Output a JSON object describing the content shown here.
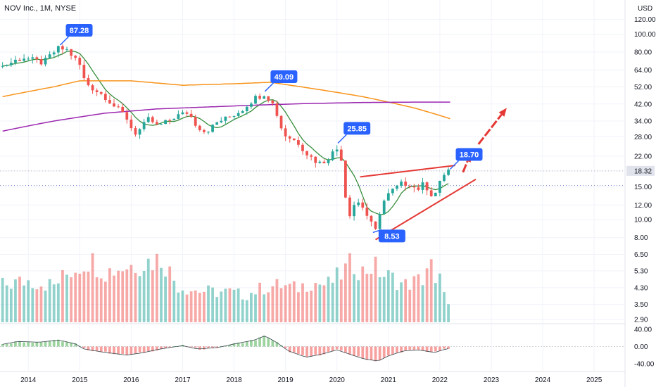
{
  "chart_data": {
    "type": "candlestick",
    "title": "NOV Inc., 1M, NYSE",
    "currency": "USD",
    "price_axis": {
      "scale": "log",
      "ticks": [
        "120.00",
        "100.00",
        "80.00",
        "64.00",
        "52.00",
        "42.00",
        "34.00",
        "28.00",
        "22.00",
        "18.32",
        "15.00",
        "12.00",
        "10.00",
        "8.00",
        "6.50",
        "5.30",
        "4.30",
        "3.50",
        "2.90"
      ],
      "current_price": "18.32",
      "range": [
        2.8,
        150
      ]
    },
    "oscillator_axis": {
      "ticks": [
        "40.00",
        "0.00",
        "-40.00"
      ],
      "range": [
        -55,
        50
      ]
    },
    "x_axis": {
      "ticks": [
        {
          "label": "2014",
          "x": 2014.0
        },
        {
          "label": "2015",
          "x": 2015.0
        },
        {
          "label": "2016",
          "x": 2016.0
        },
        {
          "label": "2017",
          "x": 2017.0
        },
        {
          "label": "2018",
          "x": 2018.0
        },
        {
          "label": "2019",
          "x": 2019.0
        },
        {
          "label": "2020",
          "x": 2020.0
        },
        {
          "label": "2021",
          "x": 2021.0
        },
        {
          "label": "2022",
          "x": 2022.0
        },
        {
          "label": "2023",
          "x": 2023.0
        },
        {
          "label": "2024",
          "x": 2024.0
        },
        {
          "label": "2025",
          "x": 2025.0
        }
      ],
      "range": [
        2013.45,
        2025.6
      ]
    },
    "price_anchors": [
      [
        2013.5,
        67
      ],
      [
        2013.7,
        71
      ],
      [
        2013.9,
        75
      ],
      [
        2014.1,
        72
      ],
      [
        2014.3,
        70
      ],
      [
        2014.5,
        80
      ],
      [
        2014.6,
        84
      ],
      [
        2014.75,
        82
      ],
      [
        2014.9,
        74
      ],
      [
        2015.0,
        68
      ],
      [
        2015.1,
        55
      ],
      [
        2015.3,
        50
      ],
      [
        2015.5,
        46
      ],
      [
        2015.7,
        40
      ],
      [
        2015.9,
        36
      ],
      [
        2016.05,
        29
      ],
      [
        2016.2,
        31
      ],
      [
        2016.35,
        35
      ],
      [
        2016.5,
        32
      ],
      [
        2016.65,
        33
      ],
      [
        2016.85,
        36
      ],
      [
        2017.0,
        37
      ],
      [
        2017.1,
        38
      ],
      [
        2017.25,
        33
      ],
      [
        2017.4,
        30
      ],
      [
        2017.55,
        31
      ],
      [
        2017.7,
        34
      ],
      [
        2017.85,
        35
      ],
      [
        2018.0,
        37
      ],
      [
        2018.15,
        39
      ],
      [
        2018.3,
        43
      ],
      [
        2018.45,
        46
      ],
      [
        2018.6,
        48
      ],
      [
        2018.75,
        42
      ],
      [
        2018.85,
        36
      ],
      [
        2018.95,
        29
      ],
      [
        2019.05,
        28
      ],
      [
        2019.25,
        26
      ],
      [
        2019.4,
        23
      ],
      [
        2019.55,
        21
      ],
      [
        2019.7,
        20
      ],
      [
        2019.85,
        22
      ],
      [
        2020.0,
        24
      ],
      [
        2020.1,
        21
      ],
      [
        2020.2,
        9.6
      ],
      [
        2020.3,
        12
      ],
      [
        2020.45,
        12.5
      ],
      [
        2020.55,
        11
      ],
      [
        2020.65,
        9.6
      ],
      [
        2020.75,
        8.7
      ],
      [
        2020.85,
        11.5
      ],
      [
        2020.95,
        13.2
      ],
      [
        2021.1,
        14.5
      ],
      [
        2021.25,
        15.5
      ],
      [
        2021.4,
        15.8
      ],
      [
        2021.55,
        14.5
      ],
      [
        2021.7,
        15.6
      ],
      [
        2021.85,
        13.5
      ],
      [
        2021.95,
        14.2
      ],
      [
        2022.05,
        17.2
      ],
      [
        2022.15,
        18.5
      ]
    ],
    "moving_averages": [
      {
        "color": "#f7931a",
        "points": [
          [
            2013.5,
            46
          ],
          [
            2014.5,
            52
          ],
          [
            2015.0,
            56
          ],
          [
            2016.0,
            56
          ],
          [
            2017.0,
            53
          ],
          [
            2018.0,
            54
          ],
          [
            2018.7,
            55
          ],
          [
            2019.5,
            51
          ],
          [
            2020.5,
            46
          ],
          [
            2021.5,
            40
          ],
          [
            2022.2,
            35
          ]
        ]
      },
      {
        "color": "#9c27b0",
        "points": [
          [
            2013.5,
            30
          ],
          [
            2014.5,
            34
          ],
          [
            2015.5,
            37.5
          ],
          [
            2016.5,
            39.5
          ],
          [
            2017.5,
            40.5
          ],
          [
            2018.5,
            41.5
          ],
          [
            2019.5,
            42.3
          ],
          [
            2020.5,
            42.8
          ],
          [
            2021.5,
            43
          ],
          [
            2022.2,
            43
          ]
        ]
      }
    ],
    "callouts": [
      {
        "label": "87.28",
        "date": 2014.62,
        "price": 87.28,
        "color": "#2962ff"
      },
      {
        "label": "49.09",
        "date": 2018.6,
        "price": 49.09,
        "color": "#2962ff"
      },
      {
        "label": "25.85",
        "date": 2020.02,
        "price": 25.85,
        "color": "#2962ff"
      },
      {
        "label": "8.53",
        "date": 2020.7,
        "price": 8.53,
        "color": "#2962ff"
      },
      {
        "label": "18.70",
        "date": 2022.2,
        "price": 18.7,
        "color": "#2962ff"
      }
    ],
    "trendlines": [
      {
        "color": "#e53935",
        "from": [
          2020.45,
          17.0
        ],
        "to": [
          2022.3,
          19.6
        ]
      },
      {
        "color": "#e53935",
        "from": [
          2020.75,
          7.8
        ],
        "to": [
          2022.7,
          16.5
        ]
      }
    ],
    "arrows": [
      {
        "color": "#e53935",
        "from": [
          2022.45,
          18.0
        ],
        "to": [
          2022.6,
          22.8
        ]
      },
      {
        "color": "#e53935",
        "from": [
          2022.75,
          25.5
        ],
        "to": [
          2023.3,
          40.0
        ]
      }
    ],
    "horizontal_levels": [
      {
        "price": 18.32,
        "color": "#b2b5be",
        "style": "dotted"
      },
      {
        "price": 15.3,
        "color": "#7986cb",
        "style": "dotted"
      }
    ],
    "volume_profile": [
      [
        2013.5,
        0.55
      ],
      [
        2014.0,
        0.62
      ],
      [
        2014.5,
        0.55
      ],
      [
        2014.8,
        0.75
      ],
      [
        2015.0,
        0.85
      ],
      [
        2015.2,
        0.95
      ],
      [
        2015.5,
        0.75
      ],
      [
        2015.8,
        0.82
      ],
      [
        2016.0,
        0.85
      ],
      [
        2016.3,
        0.9
      ],
      [
        2016.6,
        0.95
      ],
      [
        2016.9,
        0.55
      ],
      [
        2017.2,
        0.48
      ],
      [
        2017.6,
        0.45
      ],
      [
        2017.9,
        0.45
      ],
      [
        2018.2,
        0.4
      ],
      [
        2018.6,
        0.52
      ],
      [
        2018.9,
        0.55
      ],
      [
        2019.2,
        0.5
      ],
      [
        2019.5,
        0.6
      ],
      [
        2019.8,
        0.55
      ],
      [
        2020.1,
        0.72
      ],
      [
        2020.3,
        0.9
      ],
      [
        2020.5,
        0.75
      ],
      [
        2020.7,
        0.85
      ],
      [
        2020.9,
        0.7
      ],
      [
        2021.1,
        0.65
      ],
      [
        2021.3,
        0.55
      ],
      [
        2021.5,
        0.6
      ],
      [
        2021.7,
        0.65
      ],
      [
        2021.8,
        1.0
      ],
      [
        2021.9,
        0.5
      ],
      [
        2022.05,
        0.68
      ],
      [
        2022.2,
        0.12
      ]
    ],
    "oscillator_anchors": [
      [
        2013.5,
        5
      ],
      [
        2013.8,
        12
      ],
      [
        2014.2,
        10
      ],
      [
        2014.6,
        15
      ],
      [
        2014.95,
        5
      ],
      [
        2015.05,
        -5
      ],
      [
        2015.4,
        -12
      ],
      [
        2015.9,
        -20
      ],
      [
        2016.2,
        -15
      ],
      [
        2016.6,
        -5
      ],
      [
        2017.0,
        2
      ],
      [
        2017.3,
        -6
      ],
      [
        2017.7,
        -2
      ],
      [
        2018.0,
        6
      ],
      [
        2018.4,
        15
      ],
      [
        2018.6,
        25
      ],
      [
        2018.85,
        8
      ],
      [
        2019.05,
        -10
      ],
      [
        2019.4,
        -25
      ],
      [
        2019.7,
        -18
      ],
      [
        2020.0,
        -8
      ],
      [
        2020.2,
        -16
      ],
      [
        2020.5,
        -28
      ],
      [
        2020.8,
        -34
      ],
      [
        2021.0,
        -22
      ],
      [
        2021.3,
        -10
      ],
      [
        2021.6,
        -8
      ],
      [
        2021.9,
        -14
      ],
      [
        2022.05,
        -8
      ],
      [
        2022.2,
        -4
      ]
    ]
  }
}
